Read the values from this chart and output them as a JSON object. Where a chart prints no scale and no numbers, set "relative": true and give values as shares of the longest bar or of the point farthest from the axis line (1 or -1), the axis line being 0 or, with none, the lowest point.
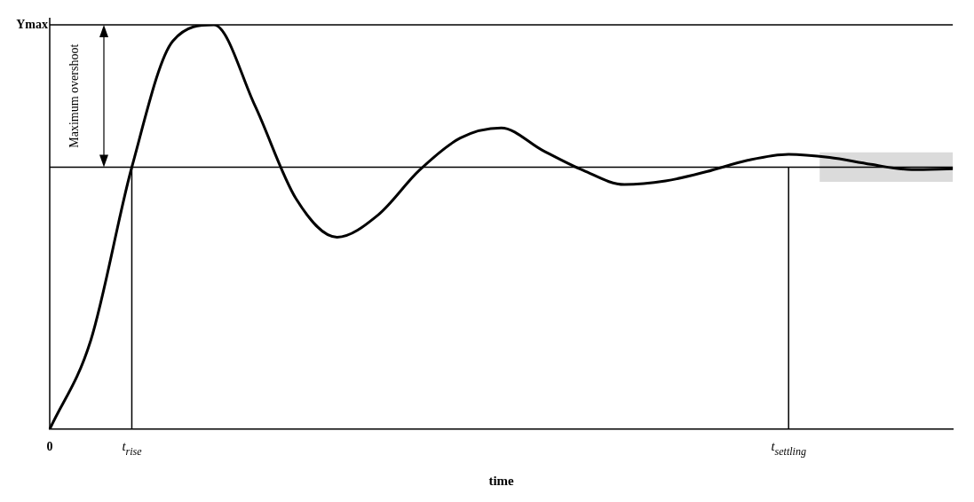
{
  "chart_data": {
    "type": "line",
    "relative": true,
    "xlabel": "time",
    "categories": [
      "0",
      null,
      "t$_{rise}$",
      null,
      null,
      null,
      null,
      null,
      null,
      null,
      null,
      null,
      null,
      null,
      null,
      null,
      null,
      null,
      "t$_{settling}$",
      null,
      null,
      null,
      null
    ],
    "series": [
      {
        "color": "#000000",
        "values": [
          0,
          0.22,
          0.648,
          0.96,
          1,
          0.8,
          0.57,
          0.475,
          0.53,
          0.64,
          0.72,
          0.745,
          0.69,
          0.64,
          0.605,
          0.614,
          0.637,
          0.665,
          0.68,
          0.672,
          0.655,
          0.642,
          0.644
        ]
      }
    ],
    "ref_lines": [
      {
        "axis": "y",
        "value": 1,
        "label": "Ymax"
      },
      {
        "axis": "y",
        "value": 0.648,
        "label": null
      },
      {
        "axis": "x",
        "value": "t$_{rise}$",
        "label": null
      },
      {
        "axis": "x",
        "value": "t$_{settling}$",
        "label": null
      }
    ],
    "bands": [
      {
        "axis": "y",
        "from": 0.612,
        "to": 0.685,
        "label": null
      }
    ],
    "annotations": [
      "Maximum overshoot"
    ],
    "grid": false,
    "legend": false,
    "marker": "none",
    "line_style": "solid"
  }
}
